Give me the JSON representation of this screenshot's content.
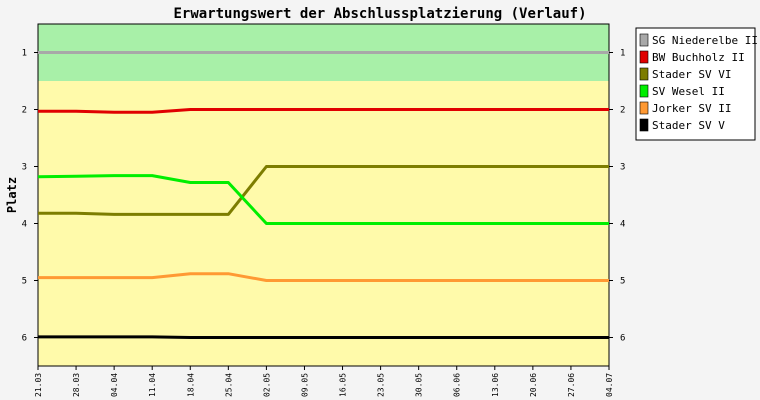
{
  "chart_data": {
    "type": "line",
    "title": "Erwartungswert der Abschlussplatzierung (Verlauf)",
    "xlabel": "",
    "ylabel": "Platz",
    "categories": [
      "21.03",
      "28.03",
      "04.04",
      "11.04",
      "18.04",
      "25.04",
      "02.05",
      "09.05",
      "16.05",
      "23.05",
      "30.05",
      "06.06",
      "13.06",
      "20.06",
      "27.06",
      "04.07"
    ],
    "ylim": [
      0.5,
      6.5
    ],
    "y_inverted": true,
    "y_ticks": [
      1,
      2,
      3,
      4,
      5,
      6
    ],
    "bands": [
      {
        "from": 0.5,
        "to": 1.5,
        "color": "#a8f0a8"
      },
      {
        "from": 1.5,
        "to": 6.5,
        "color": "#fffaaa"
      }
    ],
    "legend_position": "right",
    "series": [
      {
        "name": "SG Niederelbe II",
        "color": "#a8a8a8",
        "x": [
          0,
          15
        ],
        "values": [
          1.0,
          1.0
        ]
      },
      {
        "name": "BW Buchholz II",
        "color": "#e00000",
        "x": [
          0,
          1,
          2,
          3,
          4,
          15
        ],
        "values": [
          2.03,
          2.03,
          2.05,
          2.05,
          2.0,
          2.0
        ]
      },
      {
        "name": "Stader SV VI",
        "color": "#7d7d00",
        "x": [
          0,
          1,
          2,
          3,
          4,
          5,
          6,
          15
        ],
        "values": [
          3.82,
          3.82,
          3.84,
          3.84,
          3.84,
          3.84,
          3.0,
          3.0
        ]
      },
      {
        "name": "SV Wesel II",
        "color": "#00ee00",
        "x": [
          0,
          1,
          2,
          3,
          4,
          5,
          6,
          15
        ],
        "values": [
          3.18,
          3.17,
          3.16,
          3.16,
          3.28,
          3.28,
          4.0,
          4.0
        ]
      },
      {
        "name": "Jorker SV II",
        "color": "#ff9933",
        "x": [
          0,
          1,
          2,
          3,
          4,
          5,
          6,
          15
        ],
        "values": [
          4.95,
          4.95,
          4.95,
          4.95,
          4.88,
          4.88,
          5.0,
          5.0
        ]
      },
      {
        "name": "Stader SV V",
        "color": "#000000",
        "x": [
          0,
          1,
          2,
          3,
          4,
          15
        ],
        "values": [
          5.99,
          5.99,
          5.99,
          5.99,
          6.0,
          6.0
        ]
      }
    ]
  }
}
